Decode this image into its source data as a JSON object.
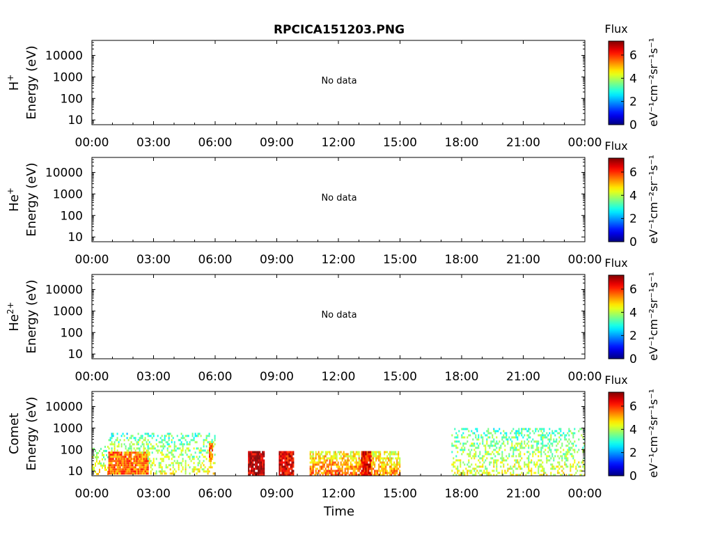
{
  "title": "RPCICA151203.PNG",
  "xlabel": "Time",
  "xticks": [
    "00:00",
    "03:00",
    "06:00",
    "09:00",
    "12:00",
    "15:00",
    "18:00",
    "21:00",
    "00:00"
  ],
  "yticks": [
    "10",
    "100",
    "1000",
    "10000"
  ],
  "colorbar": {
    "title": "Flux",
    "ticks": [
      "0",
      "2",
      "4",
      "6"
    ],
    "unit": "eV⁻¹cm⁻²sr⁻¹s⁻¹",
    "range": [
      0,
      7.2
    ],
    "colormap": "jet"
  },
  "panels": [
    {
      "species": "H",
      "sup": "+",
      "ylabel": "Energy (eV)",
      "status": "No data"
    },
    {
      "species": "He",
      "sup": "+",
      "ylabel": "Energy (eV)",
      "status": "No data"
    },
    {
      "species": "He",
      "sup": "2+",
      "ylabel": "Energy (eV)",
      "status": "No data"
    },
    {
      "species": "Comet",
      "sup": "",
      "ylabel": "Energy (eV)",
      "status": ""
    }
  ],
  "chart_data": [
    {
      "type": "heatmap",
      "panel": "H+",
      "x_range": [
        "00:00",
        "24:00"
      ],
      "y_scale": "log",
      "y_range_eV": [
        6,
        50000
      ],
      "data": [],
      "note": "No data"
    },
    {
      "type": "heatmap",
      "panel": "He+",
      "x_range": [
        "00:00",
        "24:00"
      ],
      "y_scale": "log",
      "y_range_eV": [
        6,
        50000
      ],
      "data": [],
      "note": "No data"
    },
    {
      "type": "heatmap",
      "panel": "He2+",
      "x_range": [
        "00:00",
        "24:00"
      ],
      "y_scale": "log",
      "y_range_eV": [
        6,
        50000
      ],
      "data": [],
      "note": "No data"
    },
    {
      "type": "heatmap",
      "panel": "Comet",
      "x_range": [
        "00:00",
        "24:00"
      ],
      "y_scale": "log",
      "y_range_eV": [
        6,
        50000
      ],
      "value_range": [
        0,
        7.2
      ],
      "regions": [
        {
          "t_start": 0.0,
          "t_end": 0.8,
          "e_min": 8,
          "e_max": 150,
          "flux": 3.5
        },
        {
          "t_start": 0.8,
          "t_end": 2.7,
          "e_min": 8,
          "e_max": 80,
          "flux": 5.5
        },
        {
          "t_start": 0.8,
          "t_end": 2.7,
          "e_min": 80,
          "e_max": 600,
          "flux": 3.0
        },
        {
          "t_start": 2.7,
          "t_end": 6.0,
          "e_min": 8,
          "e_max": 600,
          "flux": 3.2
        },
        {
          "t_start": 5.7,
          "t_end": 5.9,
          "e_min": 30,
          "e_max": 200,
          "flux": 5.5
        },
        {
          "t_start": 7.6,
          "t_end": 8.4,
          "e_min": 6,
          "e_max": 85,
          "flux": 6.8
        },
        {
          "t_start": 9.1,
          "t_end": 9.8,
          "e_min": 6,
          "e_max": 85,
          "flux": 6.5
        },
        {
          "t_start": 10.6,
          "t_end": 13.1,
          "e_min": 6,
          "e_max": 85,
          "flux": 4.5
        },
        {
          "t_start": 13.1,
          "t_end": 13.6,
          "e_min": 6,
          "e_max": 85,
          "flux": 6.3
        },
        {
          "t_start": 13.6,
          "t_end": 15.0,
          "e_min": 6,
          "e_max": 85,
          "flux": 4.3
        },
        {
          "t_start": 17.5,
          "t_end": 24.0,
          "e_min": 6,
          "e_max": 1000,
          "flux": 3.2
        }
      ]
    }
  ]
}
